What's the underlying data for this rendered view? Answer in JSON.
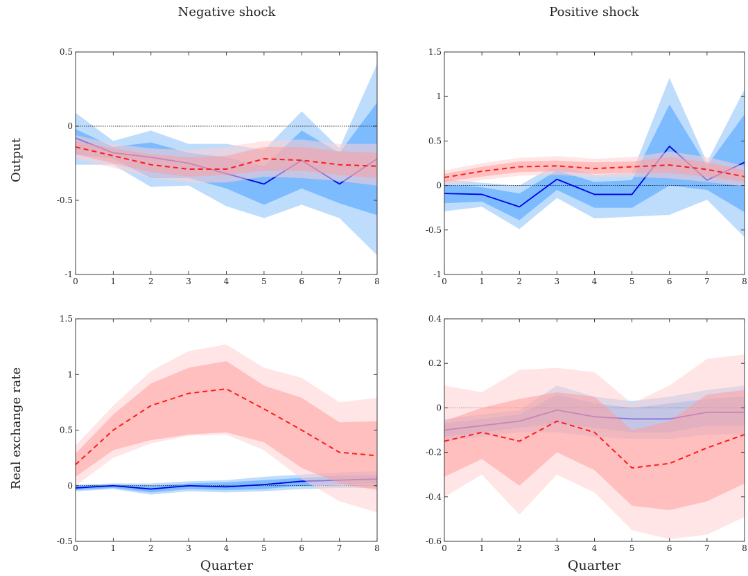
{
  "figure": {
    "column_titles": [
      "Negative shock",
      "Positive shock"
    ],
    "row_titles": [
      "Output",
      "Real exchange rate"
    ],
    "xlabel": "Quarter"
  },
  "colors": {
    "blue_line": "#0000e6",
    "blue_band_inner": "#66b0ff",
    "blue_band_outer": "#b3d6fb",
    "red_line": "#ff1a1a",
    "red_band_inner": "#ff9a9a",
    "red_band_outer": "#ffd0d0",
    "zero_line": "#000000"
  },
  "chart_data": [
    {
      "type": "line",
      "panel": "output-negative",
      "title": "",
      "xlabel": "",
      "ylabel": "Output",
      "x": [
        0,
        1,
        2,
        3,
        4,
        5,
        6,
        7,
        8
      ],
      "xlim": [
        0,
        8
      ],
      "ylim": [
        -1,
        0.5
      ],
      "yticks": [
        -1,
        -0.5,
        0,
        0.5
      ],
      "ytick_labels": [
        "-1",
        "-0.5",
        "0",
        "0.5"
      ],
      "xticks": [
        0,
        1,
        2,
        3,
        4,
        5,
        6,
        7,
        8
      ],
      "zero_line": true,
      "series": [
        {
          "color": "blue",
          "style": "solid",
          "values": [
            -0.08,
            -0.18,
            -0.21,
            -0.25,
            -0.32,
            -0.39,
            -0.23,
            -0.39,
            -0.22
          ],
          "band_inner_upper": [
            -0.02,
            -0.14,
            -0.11,
            -0.18,
            -0.21,
            -0.27,
            -0.03,
            -0.18,
            0.16
          ],
          "band_inner_lower": [
            -0.19,
            -0.22,
            -0.35,
            -0.35,
            -0.42,
            -0.53,
            -0.42,
            -0.52,
            -0.6
          ],
          "band_outer_upper": [
            0.09,
            -0.1,
            -0.03,
            -0.12,
            -0.12,
            -0.16,
            0.1,
            -0.15,
            0.42
          ],
          "band_outer_lower": [
            -0.26,
            -0.26,
            -0.41,
            -0.4,
            -0.54,
            -0.62,
            -0.53,
            -0.62,
            -0.87
          ]
        },
        {
          "color": "red",
          "style": "dashed",
          "values": [
            -0.14,
            -0.2,
            -0.26,
            -0.29,
            -0.29,
            -0.22,
            -0.23,
            -0.26,
            -0.27
          ],
          "band_inner_upper": [
            -0.1,
            -0.15,
            -0.19,
            -0.21,
            -0.2,
            -0.14,
            -0.14,
            -0.17,
            -0.18
          ],
          "band_inner_lower": [
            -0.19,
            -0.25,
            -0.31,
            -0.34,
            -0.33,
            -0.3,
            -0.3,
            -0.33,
            -0.35
          ],
          "band_outer_upper": [
            -0.06,
            -0.12,
            -0.15,
            -0.16,
            -0.14,
            -0.1,
            -0.09,
            -0.12,
            -0.12
          ],
          "band_outer_lower": [
            -0.22,
            -0.28,
            -0.35,
            -0.38,
            -0.38,
            -0.34,
            -0.35,
            -0.37,
            -0.4
          ]
        }
      ]
    },
    {
      "type": "line",
      "panel": "output-positive",
      "title": "",
      "xlabel": "",
      "ylabel": "",
      "x": [
        0,
        1,
        2,
        3,
        4,
        5,
        6,
        7,
        8
      ],
      "xlim": [
        0,
        8
      ],
      "ylim": [
        -1,
        1.5
      ],
      "yticks": [
        -1,
        -0.5,
        0,
        0.5,
        1,
        1.5
      ],
      "ytick_labels": [
        "-1",
        "-0.5",
        "0",
        "0.5",
        "1",
        "1.5"
      ],
      "xticks": [
        0,
        1,
        2,
        3,
        4,
        5,
        6,
        7,
        8
      ],
      "zero_line": true,
      "series": [
        {
          "color": "blue",
          "style": "solid",
          "values": [
            -0.09,
            -0.1,
            -0.24,
            0.07,
            -0.1,
            -0.1,
            0.44,
            0.06,
            0.26
          ],
          "band_inner_upper": [
            0.01,
            -0.02,
            -0.09,
            0.17,
            0.04,
            0.06,
            0.91,
            0.22,
            0.8
          ],
          "band_inner_lower": [
            -0.2,
            -0.18,
            -0.39,
            -0.05,
            -0.25,
            -0.25,
            0.0,
            -0.05,
            -0.3
          ],
          "band_outer_upper": [
            0.07,
            0.03,
            0.0,
            0.24,
            0.12,
            0.14,
            1.21,
            0.26,
            1.08
          ],
          "band_outer_lower": [
            -0.29,
            -0.24,
            -0.49,
            -0.14,
            -0.37,
            -0.35,
            -0.33,
            -0.16,
            -0.58
          ]
        },
        {
          "color": "red",
          "style": "dashed",
          "values": [
            0.09,
            0.16,
            0.21,
            0.22,
            0.19,
            0.21,
            0.23,
            0.18,
            0.1
          ],
          "band_inner_upper": [
            0.13,
            0.21,
            0.27,
            0.28,
            0.26,
            0.27,
            0.32,
            0.26,
            0.17
          ],
          "band_inner_lower": [
            0.04,
            0.1,
            0.15,
            0.16,
            0.13,
            0.14,
            0.14,
            0.1,
            0.04
          ],
          "band_outer_upper": [
            0.17,
            0.25,
            0.31,
            0.33,
            0.3,
            0.32,
            0.38,
            0.32,
            0.22
          ],
          "band_outer_lower": [
            0.0,
            0.06,
            0.11,
            0.12,
            0.09,
            0.1,
            0.08,
            0.04,
            -0.01
          ]
        }
      ]
    },
    {
      "type": "line",
      "panel": "rer-negative",
      "title": "",
      "xlabel": "Quarter",
      "ylabel": "Real exchange rate",
      "x": [
        0,
        1,
        2,
        3,
        4,
        5,
        6,
        7,
        8
      ],
      "xlim": [
        0,
        8
      ],
      "ylim": [
        -0.5,
        1.5
      ],
      "yticks": [
        -0.5,
        0,
        0.5,
        1,
        1.5
      ],
      "ytick_labels": [
        "-0.5",
        "0",
        "0.5",
        "1",
        "1.5"
      ],
      "xticks": [
        0,
        1,
        2,
        3,
        4,
        5,
        6,
        7,
        8
      ],
      "zero_line": true,
      "series": [
        {
          "color": "blue",
          "style": "solid",
          "values": [
            -0.02,
            0.0,
            -0.03,
            0.0,
            -0.01,
            0.01,
            0.04,
            0.05,
            0.06
          ],
          "band_inner_upper": [
            0.0,
            0.01,
            0.0,
            0.02,
            0.03,
            0.05,
            0.07,
            0.09,
            0.1
          ],
          "band_inner_lower": [
            -0.04,
            -0.02,
            -0.06,
            -0.03,
            -0.04,
            -0.03,
            0.0,
            0.01,
            0.02
          ],
          "band_outer_upper": [
            0.01,
            0.02,
            0.02,
            0.04,
            0.05,
            0.08,
            0.1,
            0.12,
            0.13
          ],
          "band_outer_lower": [
            -0.05,
            -0.03,
            -0.08,
            -0.05,
            -0.06,
            -0.05,
            -0.03,
            -0.02,
            -0.02
          ]
        },
        {
          "color": "red",
          "style": "dashed",
          "values": [
            0.19,
            0.5,
            0.72,
            0.83,
            0.87,
            0.69,
            0.5,
            0.3,
            0.27
          ],
          "band_inner_upper": [
            0.29,
            0.64,
            0.92,
            1.06,
            1.12,
            0.9,
            0.79,
            0.57,
            0.58
          ],
          "band_inner_lower": [
            0.08,
            0.32,
            0.41,
            0.46,
            0.48,
            0.39,
            0.16,
            0.02,
            -0.04
          ],
          "band_outer_upper": [
            0.36,
            0.72,
            1.03,
            1.21,
            1.27,
            1.06,
            0.97,
            0.75,
            0.79
          ],
          "band_outer_lower": [
            0.0,
            0.25,
            0.38,
            0.45,
            0.46,
            0.32,
            0.06,
            -0.14,
            -0.24
          ]
        }
      ]
    },
    {
      "type": "line",
      "panel": "rer-positive",
      "title": "",
      "xlabel": "Quarter",
      "ylabel": "",
      "x": [
        0,
        1,
        2,
        3,
        4,
        5,
        6,
        7,
        8
      ],
      "xlim": [
        0,
        8
      ],
      "ylim": [
        -0.6,
        0.4
      ],
      "yticks": [
        -0.6,
        -0.4,
        -0.2,
        0,
        0.2,
        0.4
      ],
      "ytick_labels": [
        "-0.6",
        "-0.4",
        "-0.2",
        "0",
        "0.2",
        "0.4"
      ],
      "xticks": [
        0,
        1,
        2,
        3,
        4,
        5,
        6,
        7,
        8
      ],
      "zero_line": true,
      "series": [
        {
          "color": "blue",
          "style": "solid",
          "values": [
            -0.1,
            -0.08,
            -0.06,
            -0.01,
            -0.04,
            -0.05,
            -0.05,
            -0.02,
            -0.02
          ],
          "band_inner_upper": [
            -0.07,
            -0.05,
            -0.03,
            0.06,
            0.02,
            0.0,
            0.02,
            0.04,
            0.05
          ],
          "band_inner_lower": [
            -0.13,
            -0.11,
            -0.09,
            -0.07,
            -0.09,
            -0.11,
            -0.11,
            -0.08,
            -0.08
          ],
          "band_outer_upper": [
            -0.05,
            -0.03,
            -0.01,
            0.1,
            0.05,
            0.03,
            0.05,
            0.08,
            0.1
          ],
          "band_outer_lower": [
            -0.15,
            -0.13,
            -0.11,
            -0.11,
            -0.13,
            -0.14,
            -0.14,
            -0.12,
            -0.12
          ]
        },
        {
          "color": "red",
          "style": "dashed",
          "values": [
            -0.15,
            -0.11,
            -0.15,
            -0.06,
            -0.11,
            -0.27,
            -0.25,
            -0.18,
            -0.12
          ],
          "band_inner_upper": [
            -0.06,
            0.0,
            0.04,
            0.07,
            0.05,
            -0.1,
            -0.06,
            0.06,
            0.08
          ],
          "band_inner_lower": [
            -0.31,
            -0.23,
            -0.35,
            -0.2,
            -0.28,
            -0.44,
            -0.46,
            -0.42,
            -0.34
          ],
          "band_outer_upper": [
            0.1,
            0.07,
            0.17,
            0.18,
            0.16,
            0.02,
            0.1,
            0.22,
            0.24
          ],
          "band_outer_lower": [
            -0.4,
            -0.3,
            -0.48,
            -0.3,
            -0.38,
            -0.55,
            -0.59,
            -0.57,
            -0.49
          ]
        }
      ]
    }
  ]
}
